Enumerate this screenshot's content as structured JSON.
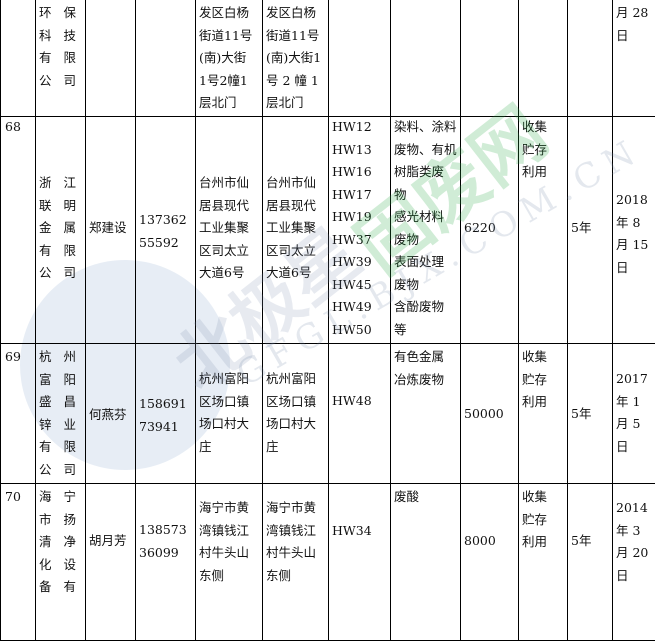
{
  "watermark": {
    "cn": "北极星固废网",
    "cn_a": "北极星",
    "cn_b": "固废网",
    "en": "GFGL.BJX.COM.CN"
  },
  "rows": [
    {
      "cells": [
        [
          ""
        ],
        [
          "环保",
          "科技",
          "有限",
          "公司"
        ],
        [
          ""
        ],
        [
          ""
        ],
        [
          "发区白杨",
          "街道11号",
          "(南)大街",
          "1号2幢1",
          "层北门"
        ],
        [
          "发区白杨",
          "街道11号",
          "(南)大街1",
          "号 2 幢 1",
          "层北门"
        ],
        [
          ""
        ],
        [
          ""
        ],
        [
          ""
        ],
        [
          ""
        ],
        [
          ""
        ],
        [
          "月 28",
          "日"
        ]
      ]
    },
    {
      "cells": [
        [
          "68"
        ],
        [
          "浙江",
          "联明",
          "金属",
          "有限",
          "公司"
        ],
        [
          "郑建设"
        ],
        [
          "137362",
          "55592"
        ],
        [
          "台州市仙",
          "居县现代",
          "工业集聚",
          "区司太立",
          "大道6号"
        ],
        [
          "台州市仙",
          "居县现代",
          "工业集聚",
          "区司太立",
          "大道6号"
        ],
        [
          "HW12",
          "HW13",
          "HW16",
          "HW17",
          "HW19",
          "HW37",
          "HW39",
          "HW45",
          "HW49",
          "HW50"
        ],
        [
          "染料、涂料",
          "废物、有机",
          "树脂类废",
          "物",
          "感光材料",
          "废物",
          "表面处理",
          "废物",
          "含酚废物",
          "等"
        ],
        [
          "6220"
        ],
        [
          "收集",
          "贮存",
          "利用"
        ],
        [
          "5年"
        ],
        [
          "2018",
          "年 8",
          "月 15",
          "日"
        ]
      ]
    },
    {
      "cells": [
        [
          "69"
        ],
        [
          "杭州",
          "富阳",
          "盛昌",
          "锌业",
          "有限",
          "公司"
        ],
        [
          "何燕芬"
        ],
        [
          "158691",
          "73941"
        ],
        [
          "杭州富阳",
          "区场口镇",
          "场口村大",
          "庄"
        ],
        [
          "杭州富阳",
          "区场口镇",
          "场口村大",
          "庄"
        ],
        [
          "HW48"
        ],
        [
          "有色金属",
          "冶炼废物"
        ],
        [
          "50000"
        ],
        [
          "收集",
          "贮存",
          "利用"
        ],
        [
          "5年"
        ],
        [
          "2017",
          "年 1",
          "月 5",
          "日"
        ]
      ]
    },
    {
      "cells": [
        [
          "70"
        ],
        [
          "海宁",
          "市扬",
          "清净",
          "化设",
          "备有"
        ],
        [
          "胡月芳"
        ],
        [
          "138573",
          "36099"
        ],
        [
          "海宁市黄",
          "湾镇钱江",
          "村牛头山",
          "东侧"
        ],
        [
          "海宁市黄",
          "湾镇钱江",
          "村牛头山",
          "东侧"
        ],
        [
          "HW34"
        ],
        [
          "废酸"
        ],
        [
          "8000"
        ],
        [
          "收集",
          "贮存",
          "利用"
        ],
        [
          "5年"
        ],
        [
          "2014",
          "年 3",
          "月 20",
          "日"
        ]
      ]
    }
  ]
}
